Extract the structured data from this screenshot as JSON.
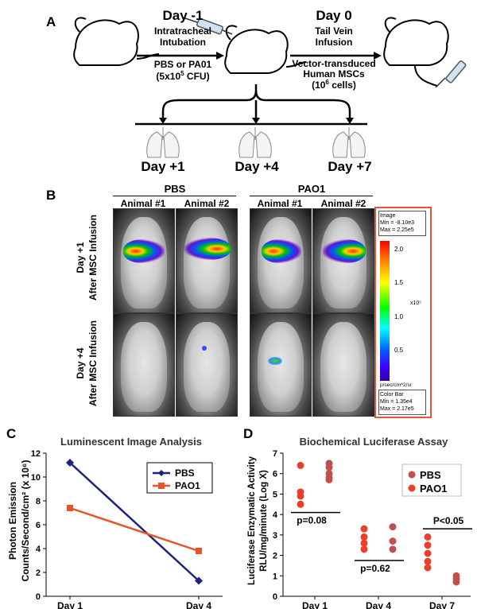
{
  "panel_a": {
    "letter": "A",
    "day_minus1": {
      "day": "Day -1",
      "line1": "Intratracheal",
      "line2": "Intubation",
      "treat1": "PBS or PA01",
      "treat2_prefix": "(5x10",
      "treat2_exp": "5",
      "treat2_suffix": " CFU)"
    },
    "day0": {
      "day": "Day 0",
      "line1": "Tail Vein",
      "line2": "Infusion",
      "treat1": "Vector-transduced",
      "treat2": "Human MSCs",
      "treat3_prefix": "(10",
      "treat3_exp": "6",
      "treat3_suffix": " cells)"
    },
    "timepoints": [
      "Day +1",
      "Day +4",
      "Day +7"
    ]
  },
  "panel_b": {
    "letter": "B",
    "groups": [
      "PBS",
      "PAO1"
    ],
    "animals": [
      "Animal #1",
      "Animal #2",
      "Animal #1",
      "Animal #2"
    ],
    "row1_label1": "Day  +1",
    "row1_label2": "After MSC Infusion",
    "row2_label1": "Day  +4",
    "row2_label2": "After MSC Infusion",
    "colorbar": {
      "image_title": "Image",
      "image_min": "Min = -8.10e3",
      "image_max": "Max = 2.25e5",
      "ticks": [
        "2.0",
        "1.5",
        "1.0",
        "0.5"
      ],
      "multiplier": "x10⁵",
      "unit": "p/sec/cm^2/sr",
      "bar_title": "Color Bar",
      "bar_min": "Min = 1.35e4",
      "bar_max": "Max = 2.17e5"
    }
  },
  "panel_c": {
    "letter": "C",
    "chart_data": {
      "type": "line",
      "title": "Luminescent Image Analysis",
      "ylabel_line1": "Photon Emission",
      "ylabel_line2": "Counts/Second/cm² (x 10⁶)",
      "categories": [
        "Day 1",
        "Day 4"
      ],
      "ylim": [
        0,
        12
      ],
      "yticks": [
        "0",
        "2",
        "4",
        "6",
        "8",
        "10",
        "12"
      ],
      "series": [
        {
          "name": "PBS",
          "values": [
            11.2,
            1.3
          ],
          "color": "#1a237e",
          "marker": "diamond"
        },
        {
          "name": "PAO1",
          "values": [
            7.4,
            3.8
          ],
          "color": "#e8542a",
          "marker": "square"
        }
      ],
      "legend": "top-right"
    }
  },
  "panel_d": {
    "letter": "D",
    "chart_data": {
      "type": "scatter",
      "title": "Biochemical Luciferase Assay",
      "ylabel_line1": "Luciferase Enzymatic Activity",
      "ylabel_line2": "RLU/mg/minute  (Log X)",
      "categories": [
        "Day 1",
        "Day 4",
        "Day 7"
      ],
      "ylim": [
        0,
        7
      ],
      "yticks": [
        "0",
        "1",
        "2",
        "3",
        "4",
        "5",
        "6",
        "7"
      ],
      "series": [
        {
          "name": "PBS",
          "color": "#c0504d",
          "points": [
            [
              1,
              5.8
            ],
            [
              1,
              6.0
            ],
            [
              1,
              6.3
            ],
            [
              1,
              6.5
            ],
            [
              1,
              5.7
            ],
            [
              2,
              3.4
            ],
            [
              2,
              2.7
            ],
            [
              2,
              2.3
            ],
            [
              3,
              1.0
            ],
            [
              3,
              0.85
            ],
            [
              3,
              0.7
            ]
          ]
        },
        {
          "name": "PAO1",
          "color": "#e8402a",
          "points": [
            [
              1,
              6.4
            ],
            [
              1,
              5.1
            ],
            [
              1,
              4.9
            ],
            [
              1,
              4.5
            ],
            [
              2,
              3.3
            ],
            [
              2,
              2.9
            ],
            [
              2,
              2.6
            ],
            [
              2,
              2.3
            ],
            [
              3,
              2.9
            ],
            [
              3,
              2.5
            ],
            [
              3,
              2.1
            ],
            [
              3,
              1.7
            ],
            [
              3,
              1.4
            ]
          ]
        }
      ],
      "annotations": [
        "p=0.08",
        "p=0.62",
        "P<0.05"
      ],
      "legend": "top-right"
    }
  }
}
